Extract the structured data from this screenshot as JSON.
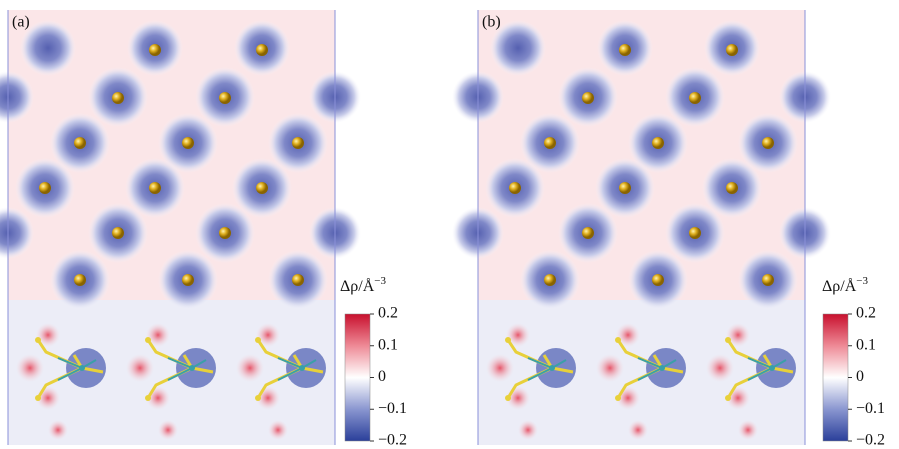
{
  "panels": [
    {
      "label": "(a)",
      "colorbar": {
        "title": "Δρ/Å",
        "title_exp": "−3",
        "ticks": [
          {
            "value": 0.2,
            "label": "0.2"
          },
          {
            "value": 0.1,
            "label": "0.1"
          },
          0,
          {
            "value": -0.1,
            "label": "−0.1"
          },
          {
            "value": -0.2,
            "label": "−0.2"
          }
        ]
      }
    },
    {
      "label": "(b)",
      "colorbar": {
        "title": "Δρ/Å",
        "title_exp": "−3",
        "ticks": [
          {
            "value": 0.2,
            "label": "0.2"
          },
          {
            "value": 0.1,
            "label": "0.1"
          },
          0,
          {
            "value": -0.1,
            "label": "−0.1"
          },
          {
            "value": -0.2,
            "label": "−0.2"
          }
        ]
      }
    }
  ]
}
